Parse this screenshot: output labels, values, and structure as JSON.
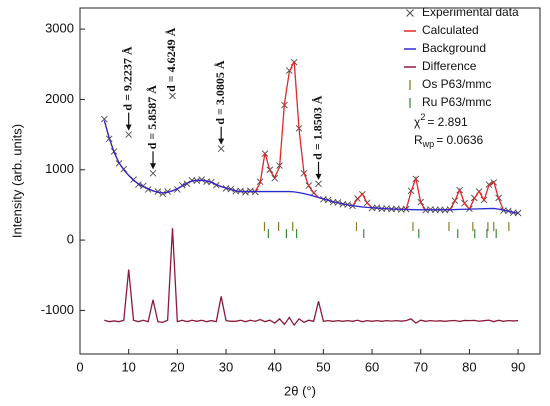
{
  "chart_data": {
    "type": "line",
    "xlabel": "2θ (°)",
    "ylabel": "Intensity (arb. units)",
    "xlim": [
      0,
      94.5
    ],
    "ylim": [
      -1620,
      3300
    ],
    "xticks": [
      0,
      10,
      20,
      30,
      40,
      50,
      60,
      70,
      80,
      90
    ],
    "yticks": [
      -1000,
      0,
      1000,
      2000,
      3000
    ],
    "legend": "upper right",
    "x": [
      5,
      6,
      7,
      8,
      9,
      10,
      11,
      12,
      13,
      14,
      15,
      16,
      17,
      18,
      19,
      20,
      21,
      22,
      23,
      24,
      25,
      26,
      27,
      28,
      29,
      30,
      31,
      32,
      33,
      34,
      35,
      36,
      37,
      38,
      39,
      40,
      41,
      42,
      43,
      44,
      45,
      46,
      47,
      48,
      49,
      50,
      51,
      52,
      53,
      54,
      55,
      56,
      57,
      58,
      59,
      60,
      61,
      62,
      63,
      64,
      65,
      66,
      67,
      68,
      69,
      70,
      71,
      72,
      73,
      74,
      75,
      76,
      77,
      78,
      79,
      80,
      81,
      82,
      83,
      84,
      85,
      86,
      87,
      88,
      89,
      90
    ],
    "series": [
      {
        "name": "Experimental data",
        "style": "markers",
        "color": "#4a4a4a",
        "values": [
          1720,
          1440,
          1260,
          1090,
          1010,
          1500,
          860,
          790,
          770,
          720,
          950,
          690,
          660,
          690,
          2050,
          720,
          780,
          800,
          850,
          845,
          860,
          830,
          825,
          780,
          1300,
          735,
          725,
          695,
          700,
          680,
          700,
          685,
          830,
          1230,
          1000,
          880,
          1060,
          1920,
          2410,
          2530,
          1590,
          950,
          775,
          670,
          800,
          580,
          570,
          540,
          535,
          510,
          505,
          485,
          590,
          650,
          530,
          455,
          460,
          445,
          450,
          440,
          445,
          435,
          440,
          700,
          870,
          540,
          425,
          435,
          428,
          432,
          425,
          435,
          560,
          710,
          525,
          445,
          600,
          690,
          570,
          790,
          820,
          600,
          420,
          415,
          390,
          385
        ]
      },
      {
        "name": "Calculated",
        "style": "line",
        "color": "#e02828",
        "values": [
          1700,
          1450,
          1250,
          1100,
          1000,
          920,
          850,
          800,
          760,
          730,
          700,
          680,
          670,
          680,
          700,
          730,
          770,
          810,
          840,
          850,
          850,
          840,
          820,
          790,
          760,
          740,
          720,
          700,
          690,
          690,
          690,
          690,
          810,
          1240,
          990,
          890,
          1040,
          1940,
          2390,
          2545,
          1575,
          960,
          765,
          675,
          605,
          585,
          565,
          545,
          530,
          515,
          500,
          490,
          580,
          660,
          525,
          460,
          455,
          450,
          445,
          442,
          440,
          438,
          436,
          684,
          882,
          530,
          430,
          430,
          430,
          430,
          430,
          432,
          554,
          716,
          518,
          440,
          592,
          694,
          566,
          778,
          830,
          590,
          425,
          410,
          395,
          380
        ]
      },
      {
        "name": "Background",
        "style": "line",
        "color": "#2a2ad0",
        "values": [
          1700,
          1450,
          1250,
          1100,
          1000,
          920,
          850,
          800,
          760,
          730,
          700,
          680,
          670,
          680,
          700,
          730,
          770,
          810,
          840,
          850,
          850,
          840,
          820,
          790,
          760,
          740,
          720,
          700,
          690,
          690,
          690,
          690,
          690,
          690,
          690,
          690,
          690,
          690,
          690,
          685,
          675,
          660,
          645,
          625,
          605,
          585,
          565,
          545,
          530,
          515,
          500,
          490,
          480,
          470,
          465,
          460,
          455,
          450,
          445,
          442,
          440,
          438,
          436,
          434,
          432,
          430,
          430,
          430,
          430,
          430,
          430,
          432,
          434,
          436,
          438,
          440,
          442,
          444,
          446,
          448,
          450,
          440,
          425,
          410,
          395,
          380
        ]
      },
      {
        "name": "Difference",
        "style": "line",
        "color": "#8b1a3a",
        "values": [
          -1140,
          -1160,
          -1150,
          -1160,
          -1140,
          -420,
          -1140,
          -1160,
          -1140,
          -1160,
          -850,
          -1160,
          -1170,
          -1140,
          170,
          -1160,
          -1140,
          -1160,
          -1140,
          -1155,
          -1140,
          -1160,
          -1145,
          -1160,
          -800,
          -1145,
          -1155,
          -1155,
          -1140,
          -1160,
          -1140,
          -1155,
          -1130,
          -1160,
          -1140,
          -1180,
          -1120,
          -1200,
          -1100,
          -1210,
          -1120,
          -1170,
          -1140,
          -1155,
          -870,
          -1155,
          -1145,
          -1155,
          -1145,
          -1155,
          -1145,
          -1155,
          -1140,
          -1160,
          -1145,
          -1155,
          -1145,
          -1155,
          -1145,
          -1152,
          -1145,
          -1153,
          -1146,
          -1120,
          -1180,
          -1140,
          -1155,
          -1145,
          -1152,
          -1148,
          -1155,
          -1147,
          -1144,
          -1156,
          -1143,
          -1145,
          -1142,
          -1154,
          -1146,
          -1138,
          -1160,
          -1140,
          -1155,
          -1145,
          -1150,
          -1145
        ]
      }
    ],
    "reflections": [
      {
        "name": "Os  P63/mmc",
        "color": "#8a7a2a",
        "x": [
          37.9,
          40.8,
          43.7,
          56.8,
          68.4,
          75.8,
          80.7,
          83.8,
          85.0,
          88.1
        ]
      },
      {
        "name": "Ru  P63/mmc",
        "color": "#3a8a3a",
        "x": [
          38.7,
          42.4,
          44.5,
          58.3,
          69.6,
          77.6,
          81.1,
          83.6,
          85.5
        ]
      }
    ],
    "stats": [
      {
        "base": "χ",
        "sup": "2",
        "text": "= 2.891"
      },
      {
        "base": "R",
        "sub": "wp",
        "text": "= 0.0636"
      }
    ],
    "annotations": [
      {
        "text": "d = 9.2237 Å",
        "x": 10
      },
      {
        "text": "d = 5.8587 Å",
        "x": 15
      },
      {
        "text": "d = 4.6249 Å",
        "x": 19
      },
      {
        "text": "d = 3.0805 Å",
        "x": 29
      },
      {
        "text": "d = 1.8503 Å",
        "x": 49
      }
    ]
  }
}
